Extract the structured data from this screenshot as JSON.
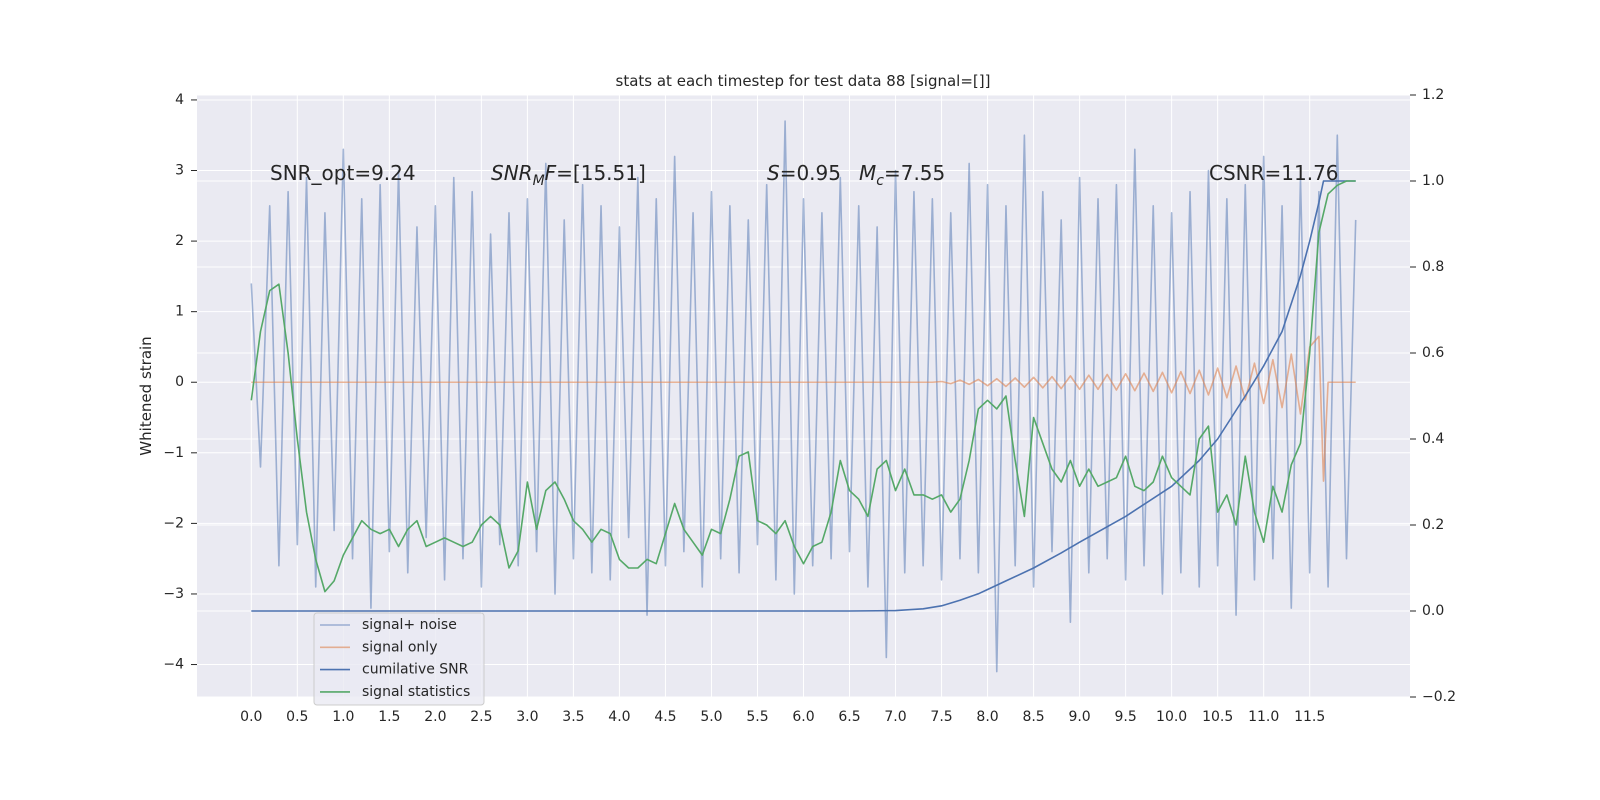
{
  "chart_data": {
    "type": "line",
    "title": "stats at each timestep for test data 88 [signal=[]]",
    "ylabel": "Whitened strain",
    "xlim": [
      -0.59,
      12.59
    ],
    "ylim": [
      -4.46,
      4.07
    ],
    "y2lim": [
      -0.2,
      1.2
    ],
    "grid": true,
    "background": "#eaeaf2",
    "legend_position": "lower left",
    "xticks": [
      {
        "value": 0,
        "label": "0.0"
      },
      0.5,
      {
        "value": 1,
        "label": "1.0"
      },
      1.5,
      {
        "value": 2,
        "label": "2.0"
      },
      2.5,
      {
        "value": 3,
        "label": "3.0"
      },
      3.5,
      {
        "value": 4,
        "label": "4.0"
      },
      4.5,
      {
        "value": 5,
        "label": "5.0"
      },
      5.5,
      {
        "value": 6,
        "label": "6.0"
      },
      6.5,
      {
        "value": 7,
        "label": "7.0"
      },
      7.5,
      {
        "value": 8,
        "label": "8.0"
      },
      8.5,
      {
        "value": 9,
        "label": "9.0"
      },
      9.5,
      {
        "value": 10,
        "label": "10.0"
      },
      10.5,
      {
        "value": 11,
        "label": "11.0"
      },
      11.5
    ],
    "yticks": [
      {
        "value": -4,
        "label": "−4"
      },
      {
        "value": -3,
        "label": "−3"
      },
      {
        "value": -2,
        "label": "−2"
      },
      {
        "value": -1,
        "label": "−1"
      },
      0,
      1,
      2,
      3,
      4
    ],
    "y2ticks": [
      {
        "value": -0.2,
        "label": "−0.2"
      },
      {
        "value": 0,
        "label": "0.0"
      },
      0.2,
      0.4,
      0.6,
      0.8,
      {
        "value": 1,
        "label": "1.0"
      },
      1.2
    ],
    "annotations": [
      {
        "parts": [
          {
            "text": "SNR_opt=9.24"
          }
        ]
      },
      {
        "parts": [
          {
            "text": "SNR",
            "italic": true
          },
          {
            "text": "M",
            "italic": true,
            "sub": true
          },
          {
            "text": "F",
            "italic": true
          },
          {
            "text": "=[15.51]"
          }
        ]
      },
      {
        "parts": [
          {
            "text": "S",
            "italic": true
          },
          {
            "text": "=0.95"
          }
        ]
      },
      {
        "parts": [
          {
            "text": "M",
            "italic": true
          },
          {
            "text": "c",
            "italic": true,
            "sub": true
          },
          {
            "text": "=7.55"
          }
        ]
      },
      {
        "parts": [
          {
            "text": "CSNR=11.76"
          }
        ]
      }
    ],
    "series": [
      {
        "name": "signal+ noise",
        "color": "#4c72b0",
        "opacity": 0.5,
        "x": [
          0,
          0.1,
          0.2,
          0.3,
          0.4,
          0.5,
          0.6,
          0.7,
          0.8,
          0.9,
          1,
          1.1,
          1.2,
          1.3,
          1.4,
          1.5,
          1.6,
          1.7,
          1.8,
          1.9,
          2,
          2.1,
          2.2,
          2.3,
          2.4,
          2.5,
          2.6,
          2.7,
          2.8,
          2.9,
          3,
          3.1,
          3.2,
          3.3,
          3.4,
          3.5,
          3.6,
          3.7,
          3.8,
          3.9,
          4,
          4.1,
          4.2,
          4.3,
          4.4,
          4.5,
          4.6,
          4.7,
          4.8,
          4.9,
          5,
          5.1,
          5.2,
          5.3,
          5.4,
          5.5,
          5.6,
          5.7,
          5.8,
          5.9,
          6,
          6.1,
          6.2,
          6.3,
          6.4,
          6.5,
          6.6,
          6.7,
          6.8,
          6.9,
          7,
          7.1,
          7.2,
          7.3,
          7.4,
          7.5,
          7.6,
          7.7,
          7.8,
          7.9,
          8,
          8.1,
          8.2,
          8.3,
          8.4,
          8.5,
          8.6,
          8.7,
          8.8,
          8.9,
          9,
          9.1,
          9.2,
          9.3,
          9.4,
          9.5,
          9.6,
          9.7,
          9.8,
          9.9,
          10,
          10.1,
          10.2,
          10.3,
          10.4,
          10.5,
          10.6,
          10.7,
          10.8,
          10.9,
          11,
          11.1,
          11.2,
          11.3,
          11.4,
          11.5,
          11.6,
          11.7,
          11.8,
          11.9,
          12
        ],
        "values": [
          1.4,
          -1.2,
          2.5,
          -2.6,
          2.7,
          -2.3,
          2.9,
          -2.9,
          2.4,
          -2.1,
          3.3,
          -2.5,
          2.6,
          -3.2,
          2.8,
          -2.4,
          3.0,
          -2.7,
          2.2,
          -2.2,
          2.5,
          -2.8,
          2.9,
          -2.5,
          2.7,
          -2.9,
          2.1,
          -2.3,
          2.4,
          -2.6,
          2.6,
          -2.4,
          3.1,
          -3.0,
          2.3,
          -2.5,
          2.8,
          -2.7,
          2.5,
          -2.8,
          2.2,
          -2.2,
          2.9,
          -3.3,
          2.6,
          -2.6,
          3.2,
          -2.4,
          2.4,
          -2.9,
          2.7,
          -2.5,
          2.5,
          -2.7,
          2.3,
          -2.3,
          2.8,
          -2.8,
          3.7,
          -3.0,
          2.6,
          -2.6,
          2.4,
          -2.5,
          2.9,
          -2.4,
          2.5,
          -2.9,
          2.2,
          -3.9,
          3.0,
          -2.7,
          2.7,
          -2.6,
          2.6,
          -2.8,
          2.4,
          -2.5,
          3.1,
          -2.7,
          2.8,
          -4.1,
          2.5,
          -2.6,
          3.5,
          -2.9,
          2.7,
          -2.4,
          2.3,
          -3.4,
          2.9,
          -2.7,
          2.6,
          -2.5,
          2.8,
          -2.8,
          3.3,
          -2.6,
          2.5,
          -3.0,
          2.4,
          -2.7,
          2.7,
          -2.9,
          3.0,
          -2.6,
          2.6,
          -3.3,
          2.8,
          -2.8,
          3.2,
          -2.5,
          2.5,
          -3.2,
          2.9,
          -2.7,
          2.7,
          -2.9,
          3.5,
          -2.5,
          2.3
        ]
      },
      {
        "name": "signal only",
        "color": "#dd8452",
        "opacity": 0.6,
        "x": [
          0,
          7.4,
          7.5,
          7.6,
          7.7,
          7.8,
          7.9,
          8,
          8.1,
          8.2,
          8.3,
          8.4,
          8.5,
          8.6,
          8.7,
          8.8,
          8.9,
          9,
          9.1,
          9.2,
          9.3,
          9.4,
          9.5,
          9.6,
          9.7,
          9.8,
          9.9,
          10,
          10.1,
          10.2,
          10.3,
          10.4,
          10.5,
          10.6,
          10.7,
          10.8,
          10.9,
          11,
          11.1,
          11.2,
          11.3,
          11.4,
          11.5,
          11.6,
          11.65,
          11.7,
          12
        ],
        "values": [
          0,
          0,
          0.01,
          -0.02,
          0.03,
          -0.03,
          0.04,
          -0.05,
          0.05,
          -0.06,
          0.06,
          -0.07,
          0.07,
          -0.08,
          0.08,
          -0.09,
          0.09,
          -0.1,
          0.1,
          -0.1,
          0.11,
          -0.11,
          0.12,
          -0.12,
          0.13,
          -0.13,
          0.14,
          -0.15,
          0.15,
          -0.16,
          0.17,
          -0.18,
          0.2,
          -0.22,
          0.23,
          -0.25,
          0.27,
          -0.3,
          0.32,
          -0.36,
          0.4,
          -0.45,
          0.5,
          0.65,
          -1.4,
          0,
          0
        ]
      },
      {
        "name": "cumilative SNR",
        "color": "#4c72b0",
        "opacity": 1,
        "axis": "y2",
        "x": [
          0,
          6.5,
          7,
          7.3,
          7.5,
          7.7,
          7.9,
          8,
          8.2,
          8.5,
          8.8,
          9,
          9.5,
          10,
          10.3,
          10.5,
          10.8,
          11,
          11.2,
          11.4,
          11.5,
          11.6,
          11.65,
          12
        ],
        "values": [
          0,
          0,
          0.001,
          0.005,
          0.012,
          0.025,
          0.04,
          0.05,
          0.07,
          0.1,
          0.135,
          0.16,
          0.22,
          0.29,
          0.35,
          0.4,
          0.5,
          0.57,
          0.65,
          0.78,
          0.86,
          0.95,
          1,
          1
        ]
      },
      {
        "name": "signal statistics",
        "color": "#55a868",
        "opacity": 1,
        "axis": "y2",
        "x": [
          0,
          0.1,
          0.2,
          0.3,
          0.4,
          0.5,
          0.6,
          0.7,
          0.8,
          0.9,
          1,
          1.1,
          1.2,
          1.3,
          1.4,
          1.5,
          1.6,
          1.7,
          1.8,
          1.9,
          2,
          2.1,
          2.2,
          2.3,
          2.4,
          2.5,
          2.6,
          2.7,
          2.8,
          2.9,
          3,
          3.1,
          3.2,
          3.3,
          3.4,
          3.5,
          3.6,
          3.7,
          3.8,
          3.9,
          4,
          4.1,
          4.2,
          4.3,
          4.4,
          4.5,
          4.6,
          4.7,
          4.8,
          4.9,
          5,
          5.1,
          5.2,
          5.3,
          5.4,
          5.5,
          5.6,
          5.7,
          5.8,
          5.9,
          6,
          6.1,
          6.2,
          6.3,
          6.4,
          6.5,
          6.6,
          6.7,
          6.8,
          6.9,
          7,
          7.1,
          7.2,
          7.3,
          7.4,
          7.5,
          7.6,
          7.7,
          7.8,
          7.9,
          8,
          8.1,
          8.2,
          8.3,
          8.4,
          8.5,
          8.6,
          8.7,
          8.8,
          8.9,
          9,
          9.1,
          9.2,
          9.3,
          9.4,
          9.5,
          9.6,
          9.7,
          9.8,
          9.9,
          10,
          10.1,
          10.2,
          10.3,
          10.4,
          10.5,
          10.6,
          10.7,
          10.8,
          10.9,
          11,
          11.1,
          11.2,
          11.3,
          11.4,
          11.5,
          11.6,
          11.7,
          11.8,
          11.9,
          12
        ],
        "values": [
          0.49,
          0.65,
          0.745,
          0.76,
          0.6,
          0.4,
          0.23,
          0.12,
          0.045,
          0.07,
          0.13,
          0.17,
          0.21,
          0.19,
          0.18,
          0.19,
          0.15,
          0.19,
          0.21,
          0.15,
          0.16,
          0.17,
          0.16,
          0.15,
          0.16,
          0.2,
          0.22,
          0.2,
          0.1,
          0.14,
          0.3,
          0.19,
          0.28,
          0.3,
          0.26,
          0.21,
          0.19,
          0.16,
          0.19,
          0.18,
          0.12,
          0.1,
          0.1,
          0.12,
          0.11,
          0.18,
          0.25,
          0.19,
          0.16,
          0.13,
          0.19,
          0.18,
          0.26,
          0.36,
          0.37,
          0.21,
          0.2,
          0.18,
          0.21,
          0.15,
          0.11,
          0.15,
          0.16,
          0.23,
          0.35,
          0.28,
          0.26,
          0.22,
          0.33,
          0.35,
          0.28,
          0.33,
          0.27,
          0.27,
          0.26,
          0.27,
          0.23,
          0.26,
          0.35,
          0.47,
          0.49,
          0.47,
          0.5,
          0.35,
          0.22,
          0.45,
          0.39,
          0.33,
          0.3,
          0.35,
          0.29,
          0.33,
          0.29,
          0.3,
          0.31,
          0.36,
          0.29,
          0.28,
          0.3,
          0.36,
          0.31,
          0.29,
          0.27,
          0.4,
          0.43,
          0.23,
          0.27,
          0.2,
          0.36,
          0.23,
          0.16,
          0.29,
          0.23,
          0.34,
          0.39,
          0.6,
          0.88,
          0.97,
          0.99,
          1,
          1
        ]
      }
    ]
  }
}
